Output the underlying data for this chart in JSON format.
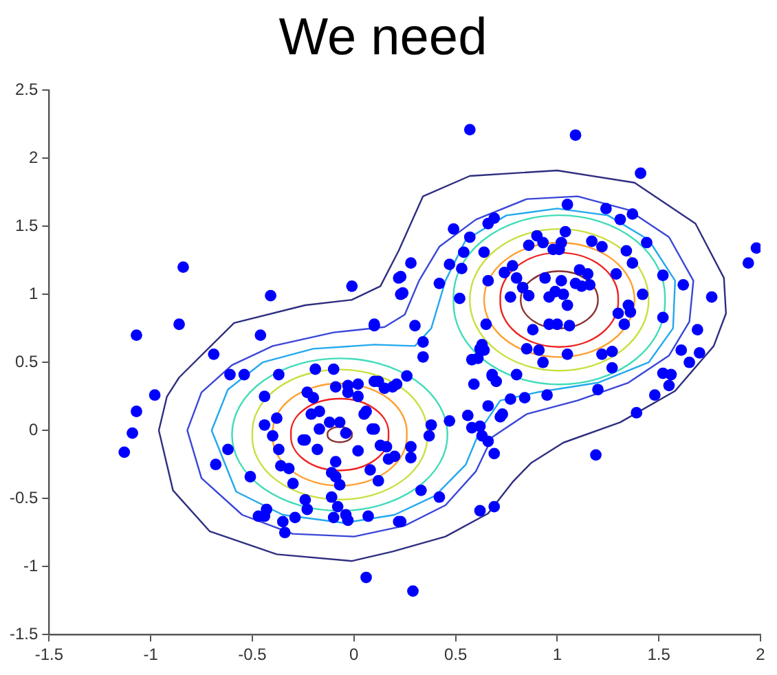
{
  "chart_data": {
    "type": "scatter",
    "title": "We need",
    "xlim": [
      -1.5,
      2
    ],
    "ylim": [
      -1.5,
      2.5
    ],
    "xticks": [
      -1.5,
      -1,
      -0.5,
      0,
      0.5,
      1,
      1.5,
      2
    ],
    "yticks": [
      -1.5,
      -1,
      -0.5,
      0,
      0.5,
      1,
      1.5,
      2,
      2.5
    ],
    "grid": false,
    "legend": false,
    "series": [
      {
        "type": "scatter",
        "color": "#0000ff",
        "marker": "circle",
        "x": [
          -1.07,
          -0.86,
          -0.84,
          -0.69,
          -0.41,
          -0.46,
          -0.01,
          0.1,
          0.22,
          0.23,
          -0.61,
          -0.54,
          -0.37,
          -0.19,
          -0.1,
          0.57,
          1.09,
          1.41,
          1.98,
          1.94,
          1.76,
          1.05,
          1.24,
          1.31,
          1.37,
          1.44,
          1.52,
          1.62,
          1.52,
          1.69,
          1.61,
          1.7,
          1.65,
          0.49,
          0.57,
          0.66,
          0.69,
          0.54,
          0.47,
          0.53,
          0.64,
          0.28,
          0.23,
          0.24,
          0.42,
          0.52,
          0.66,
          0.74,
          0.78,
          0.8,
          0.83,
          0.77,
          0.86,
          0.86,
          0.9,
          0.93,
          1.04,
          0.98,
          1.01,
          1.02,
          1.17,
          1.22,
          1.34,
          1.37,
          1.29,
          1.42,
          1.11,
          1.15,
          0.94,
          1.02,
          1.09,
          1.12,
          1.16,
          0.99,
          0.96,
          1.03,
          1.05,
          1.3,
          1.35,
          1.36,
          1.33,
          0.65,
          0.88,
          0.96,
          1.0,
          1.06,
          0.1,
          0.3,
          0.34,
          0.63,
          0.62,
          0.58,
          0.85,
          0.91,
          0.93,
          1.05,
          1.22,
          1.27,
          1.27,
          0.68,
          0.8,
          1.52,
          0.34,
          0.61,
          0.64,
          0.59,
          0.68,
          0.7,
          0.66,
          0.77,
          0.84,
          0.95,
          1.2,
          1.39,
          1.48,
          1.55,
          1.56,
          0.47,
          0.56,
          0.58,
          0.62,
          0.72,
          0.73,
          0.63,
          0.66,
          0.69,
          1.19,
          0.33,
          0.42,
          0.62,
          0.69,
          0.23,
          0.29,
          0.38,
          0.37,
          0.28,
          0.28,
          0.17,
          0.2,
          0.16,
          0.13,
          0.12,
          0.26,
          0.19,
          0.21,
          0.12,
          0.09,
          -1.13,
          -1.09,
          -1.07,
          -0.98,
          -0.68,
          -0.62,
          -0.51,
          -0.44,
          -0.44,
          -0.4,
          -0.38,
          -0.37,
          -0.36,
          -0.32,
          -0.3,
          -0.43,
          -0.44,
          -0.47,
          -0.35,
          -0.34,
          -0.29,
          -0.24,
          -0.23,
          -0.25,
          -0.24,
          -0.21,
          -0.17,
          -0.23,
          -0.2,
          -0.17,
          -0.18,
          -0.12,
          -0.07,
          -0.04,
          -0.09,
          -0.11,
          -0.09,
          -0.07,
          -0.11,
          -0.08,
          -0.1,
          -0.04,
          -0.03,
          0.07,
          0.08,
          0.02,
          0.1,
          0.05,
          0.06,
          -0.09,
          -0.03,
          0.02,
          -0.03,
          0.02,
          0.1,
          0.15,
          0.22,
          0.06
        ],
        "values": [
          0.7,
          0.78,
          1.2,
          0.56,
          0.99,
          0.7,
          1.06,
          0.77,
          1.12,
          1.0,
          0.41,
          0.41,
          0.41,
          0.45,
          0.45,
          2.21,
          2.17,
          1.89,
          1.34,
          1.23,
          0.98,
          1.66,
          1.63,
          1.55,
          1.59,
          1.38,
          1.14,
          1.07,
          0.83,
          0.74,
          0.59,
          0.57,
          0.5,
          1.48,
          1.42,
          1.52,
          1.56,
          1.31,
          1.22,
          1.19,
          1.31,
          1.23,
          1.13,
          1.01,
          1.08,
          0.97,
          1.1,
          1.16,
          1.21,
          1.12,
          1.05,
          0.98,
          0.99,
          1.36,
          1.43,
          1.38,
          1.46,
          1.33,
          1.33,
          1.38,
          1.39,
          1.35,
          1.32,
          1.23,
          1.15,
          1.0,
          1.18,
          1.15,
          1.12,
          1.1,
          1.08,
          1.06,
          1.07,
          1.02,
          0.98,
          1.0,
          0.92,
          0.86,
          0.92,
          0.87,
          0.78,
          0.78,
          0.74,
          0.78,
          0.78,
          0.77,
          0.78,
          0.77,
          0.65,
          0.63,
          0.6,
          0.52,
          0.6,
          0.59,
          0.5,
          0.56,
          0.56,
          0.58,
          0.46,
          0.41,
          0.41,
          0.42,
          0.54,
          0.53,
          0.59,
          0.34,
          0.4,
          0.36,
          0.18,
          0.23,
          0.24,
          0.26,
          0.3,
          0.13,
          0.26,
          0.33,
          0.41,
          0.07,
          0.11,
          0.02,
          0.03,
          0.1,
          0.12,
          -0.04,
          -0.08,
          -0.17,
          -0.18,
          -0.44,
          -0.49,
          -0.59,
          -0.56,
          -0.67,
          -1.18,
          0.04,
          -0.04,
          -0.12,
          -0.2,
          -0.21,
          -0.19,
          -0.12,
          -0.11,
          -0.37,
          0.4,
          0.32,
          0.34,
          0.36,
          0.01,
          -0.16,
          -0.02,
          0.14,
          0.26,
          -0.25,
          -0.14,
          -0.34,
          0.25,
          0.04,
          -0.04,
          0.09,
          -0.14,
          -0.26,
          -0.28,
          -0.39,
          -0.58,
          -0.63,
          -0.63,
          -0.67,
          -0.75,
          -0.64,
          -0.51,
          -0.58,
          -0.07,
          -0.07,
          0.12,
          0.14,
          0.28,
          0.24,
          0.01,
          -0.14,
          0.06,
          0.06,
          -0.02,
          -0.23,
          -0.31,
          -0.34,
          -0.4,
          -0.49,
          -0.56,
          -0.64,
          -0.62,
          -0.66,
          -0.63,
          -0.29,
          -0.15,
          0.01,
          0.12,
          0.14,
          0.32,
          0.33,
          0.34,
          0.28,
          0.25,
          0.36,
          0.31,
          -0.67,
          -1.08
        ]
      }
    ]
  }
}
